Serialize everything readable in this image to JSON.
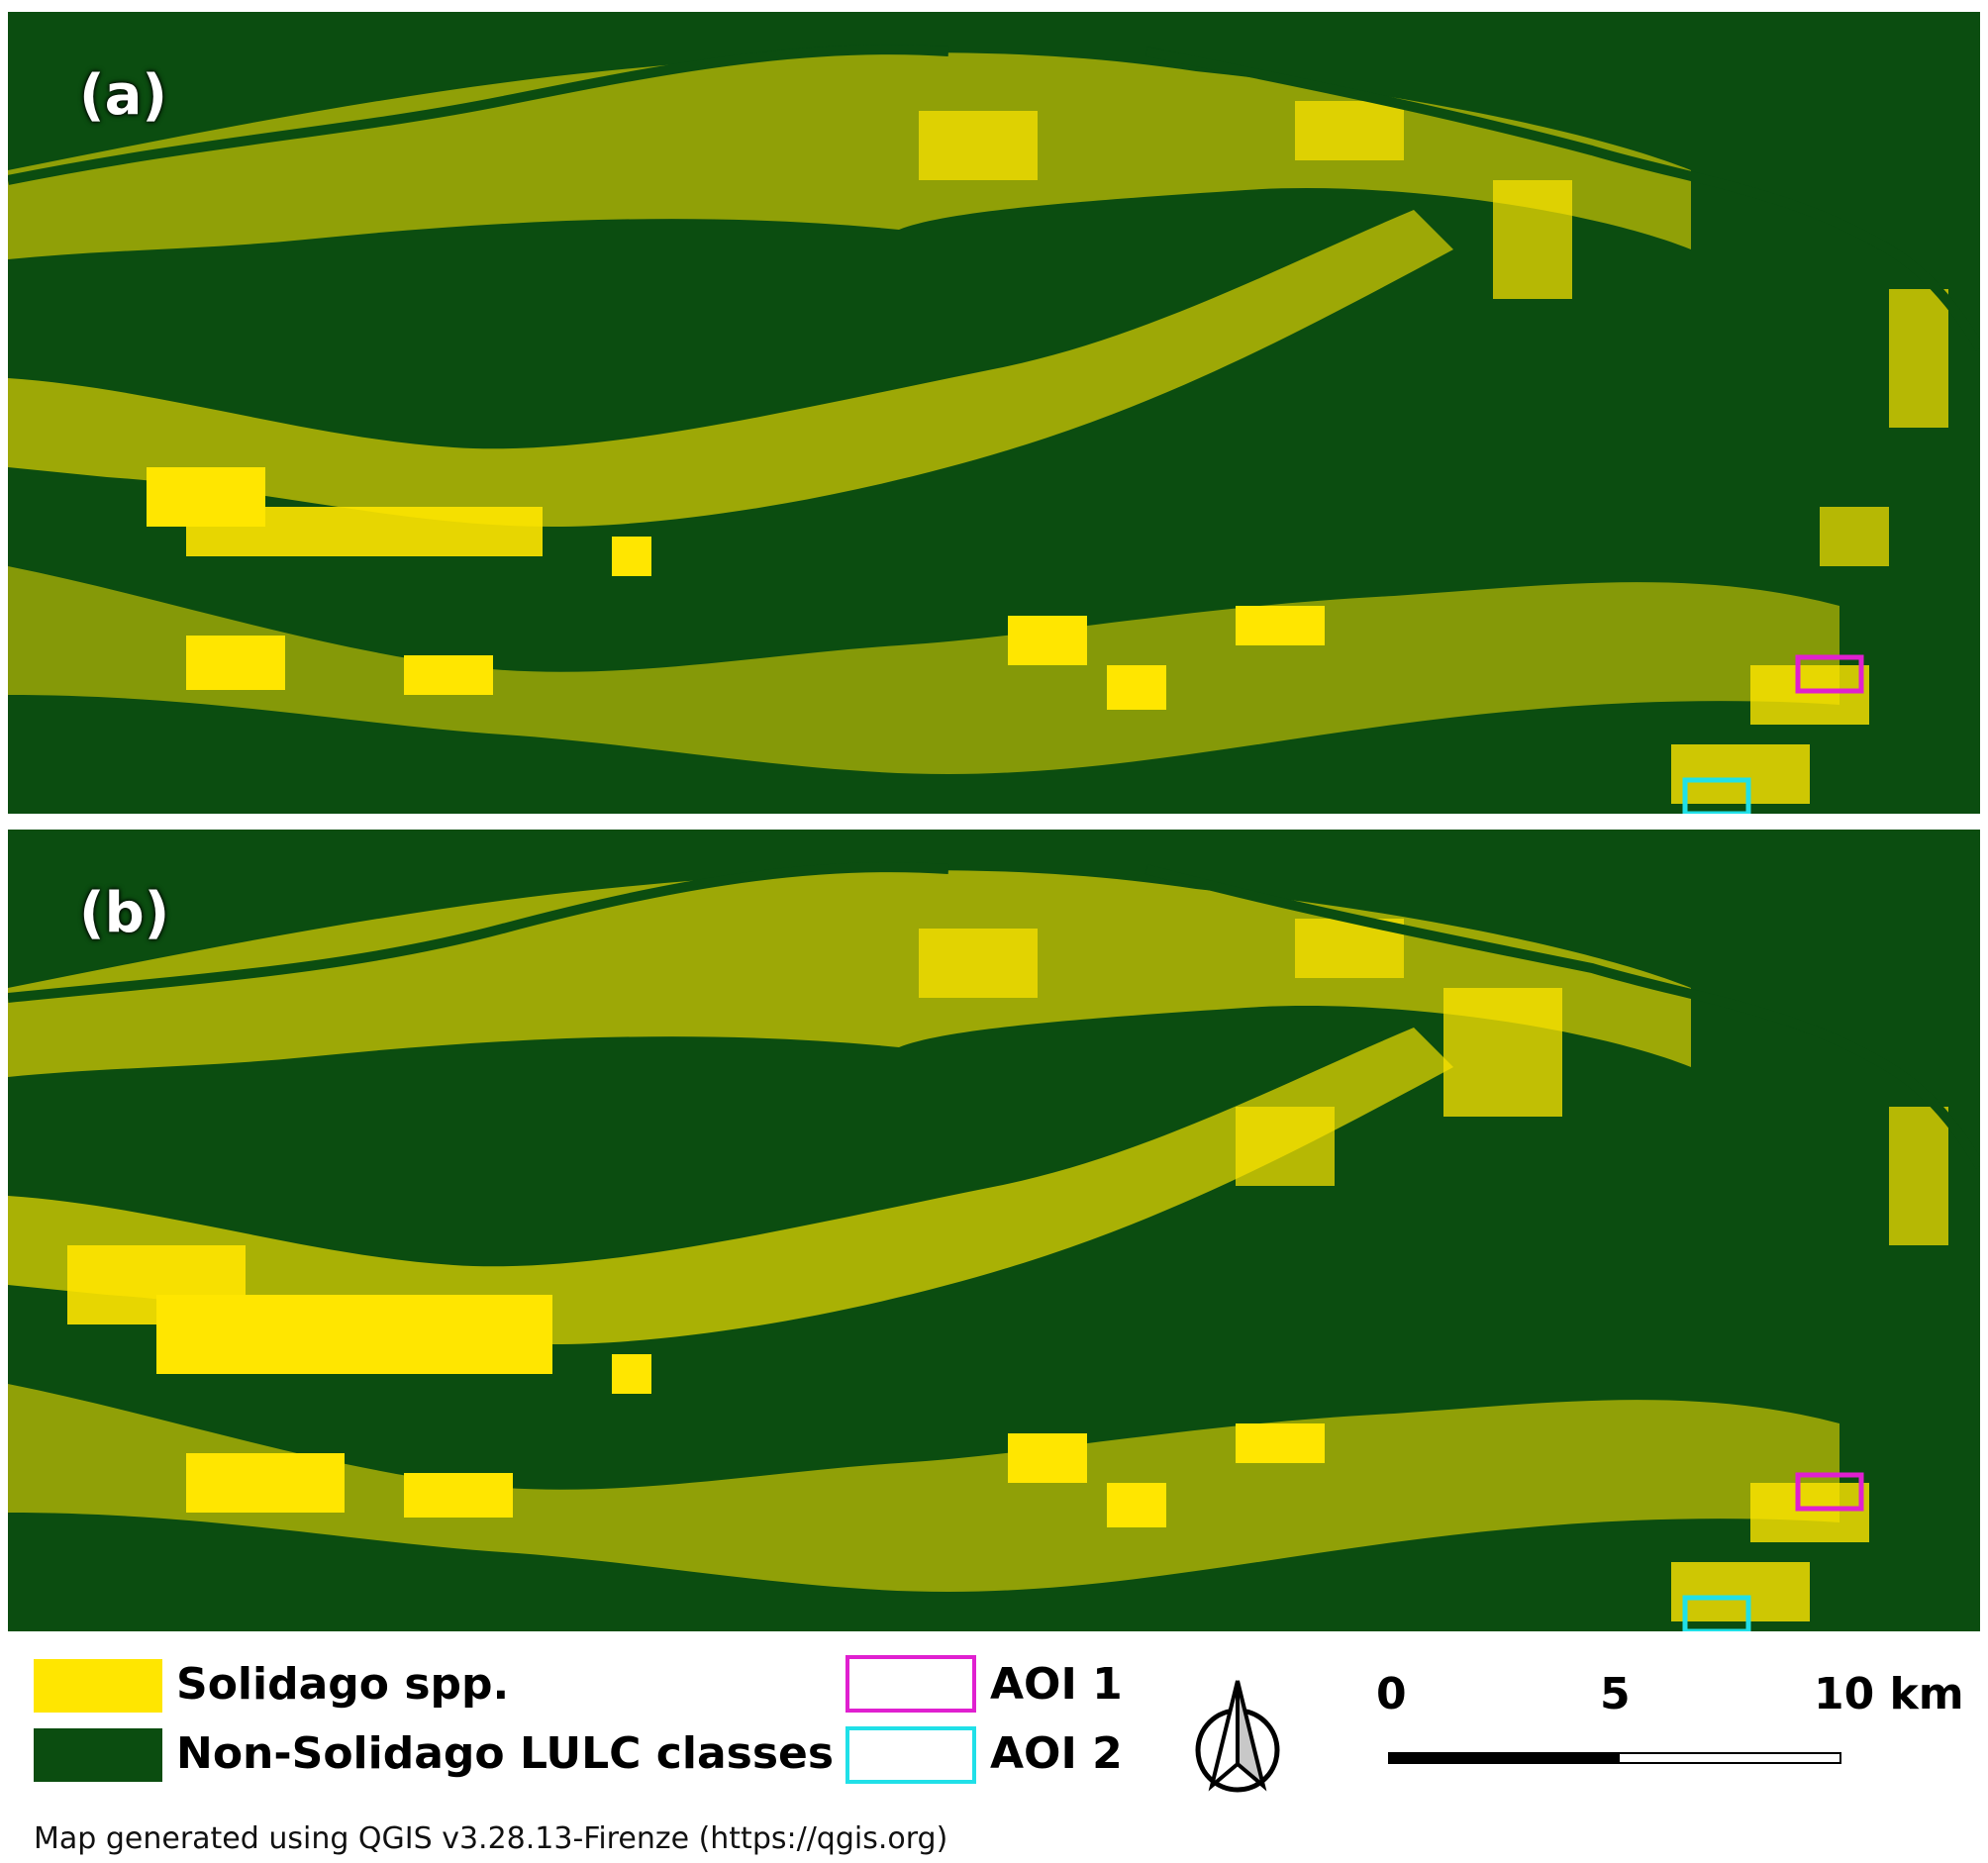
{
  "panels": [
    {
      "label": "(a)"
    },
    {
      "label": "(b)"
    }
  ],
  "legend": {
    "classes": [
      {
        "label": "Solidago spp.",
        "color": "#ffe600"
      },
      {
        "label": "Non-Solidago LULC classes",
        "color": "#0b4d10"
      }
    ],
    "aois": [
      {
        "label": "AOI 1",
        "color": "#e020d0"
      },
      {
        "label": "AOI 2",
        "color": "#20e0e8"
      }
    ]
  },
  "north_arrow": {
    "icon": "north-arrow-icon"
  },
  "scale_bar": {
    "ticks": [
      "0",
      "5",
      "10 km"
    ]
  },
  "credit": "Map generated using QGIS v3.28.13-Firenze (https://qgis.org)"
}
